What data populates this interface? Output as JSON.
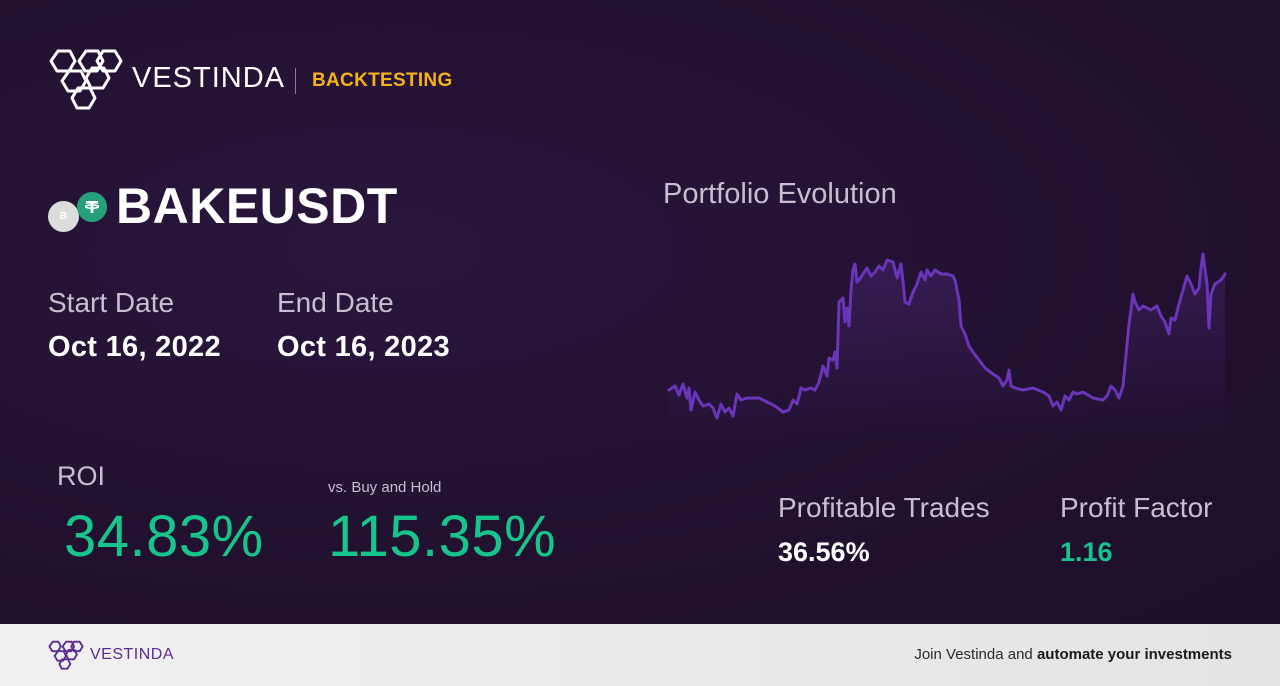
{
  "header": {
    "brand": "VESTINDA",
    "section": "BACKTESTING"
  },
  "pair": {
    "symbol": "BAKEUSDT",
    "base_icon_letter": "B",
    "base_icon": "bake-coin-icon",
    "quote_icon": "tether-icon"
  },
  "dates": {
    "start_label": "Start Date",
    "start_value": "Oct 16, 2022",
    "end_label": "End Date",
    "end_value": "Oct 16, 2023"
  },
  "roi": {
    "label": "ROI",
    "value": "34.83%",
    "vs_label": "vs. Buy and Hold",
    "vs_value": "115.35%"
  },
  "chart": {
    "title": "Portfolio Evolution",
    "line_color": "#6a35b8"
  },
  "stats": {
    "profitable_label": "Profitable Trades",
    "profitable_value": "36.56%",
    "factor_label": "Profit Factor",
    "factor_value": "1.16"
  },
  "footer": {
    "brand": "VESTINDA",
    "cta_prefix": "Join Vestinda and ",
    "cta_bold": "automate your investments"
  },
  "colors": {
    "accent_yellow": "#f5b21d",
    "positive_green": "#17c58c",
    "brand_purple": "#5a2d91",
    "background": "#21112f"
  }
}
